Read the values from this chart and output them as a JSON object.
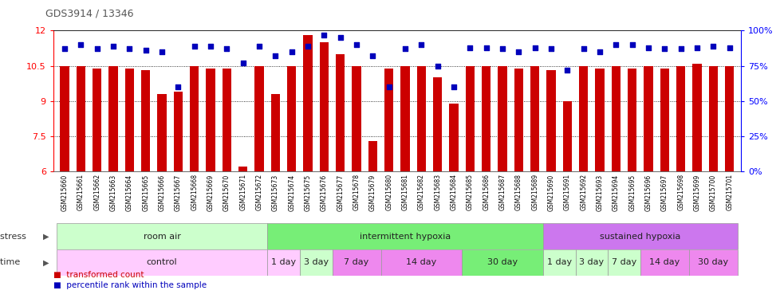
{
  "title": "GDS3914 / 13346",
  "samples": [
    "GSM215660",
    "GSM215661",
    "GSM215662",
    "GSM215663",
    "GSM215664",
    "GSM215665",
    "GSM215666",
    "GSM215667",
    "GSM215668",
    "GSM215669",
    "GSM215670",
    "GSM215671",
    "GSM215672",
    "GSM215673",
    "GSM215674",
    "GSM215675",
    "GSM215676",
    "GSM215677",
    "GSM215678",
    "GSM215679",
    "GSM215680",
    "GSM215681",
    "GSM215682",
    "GSM215683",
    "GSM215684",
    "GSM215685",
    "GSM215686",
    "GSM215687",
    "GSM215688",
    "GSM215689",
    "GSM215690",
    "GSM215691",
    "GSM215692",
    "GSM215693",
    "GSM215694",
    "GSM215695",
    "GSM215696",
    "GSM215697",
    "GSM215698",
    "GSM215699",
    "GSM215700",
    "GSM215701"
  ],
  "bar_values": [
    10.5,
    10.5,
    10.4,
    10.5,
    10.4,
    10.3,
    9.3,
    9.4,
    10.5,
    10.4,
    10.4,
    6.2,
    10.5,
    9.3,
    10.5,
    11.8,
    11.5,
    11.0,
    10.5,
    7.3,
    10.4,
    10.5,
    10.5,
    10.0,
    8.9,
    10.5,
    10.5,
    10.5,
    10.4,
    10.5,
    10.3,
    9.0,
    10.5,
    10.4,
    10.5,
    10.4,
    10.5,
    10.4,
    10.5,
    10.6,
    10.5,
    10.5
  ],
  "dot_values": [
    87,
    90,
    87,
    89,
    87,
    86,
    85,
    60,
    89,
    89,
    87,
    77,
    89,
    82,
    85,
    89,
    97,
    95,
    90,
    82,
    60,
    87,
    90,
    75,
    60,
    88,
    88,
    87,
    85,
    88,
    87,
    72,
    87,
    85,
    90,
    90,
    88,
    87,
    87,
    88,
    89,
    88
  ],
  "ylim_left": [
    6,
    12
  ],
  "ylim_right": [
    0,
    100
  ],
  "yticks_left": [
    6,
    7.5,
    9,
    10.5,
    12
  ],
  "yticks_right": [
    0,
    25,
    50,
    75,
    100
  ],
  "ytick_labels_right": [
    "0%",
    "25%",
    "50%",
    "75%",
    "100%"
  ],
  "bar_color": "#cc0000",
  "dot_color": "#0000bb",
  "grid_dotted_values": [
    7.5,
    9.0,
    10.5
  ],
  "stress_groups": [
    {
      "label": "room air",
      "start": 0,
      "end": 13,
      "color": "#ccffcc"
    },
    {
      "label": "intermittent hypoxia",
      "start": 13,
      "end": 30,
      "color": "#77ee77"
    },
    {
      "label": "sustained hypoxia",
      "start": 30,
      "end": 42,
      "color": "#cc77ee"
    }
  ],
  "time_groups": [
    {
      "label": "control",
      "start": 0,
      "end": 13,
      "color": "#ffccff"
    },
    {
      "label": "1 day",
      "start": 13,
      "end": 15,
      "color": "#ffccff"
    },
    {
      "label": "3 day",
      "start": 15,
      "end": 17,
      "color": "#ccffcc"
    },
    {
      "label": "7 day",
      "start": 17,
      "end": 20,
      "color": "#ee88ee"
    },
    {
      "label": "14 day",
      "start": 20,
      "end": 25,
      "color": "#ee88ee"
    },
    {
      "label": "30 day",
      "start": 25,
      "end": 30,
      "color": "#77ee77"
    },
    {
      "label": "1 day",
      "start": 30,
      "end": 32,
      "color": "#ccffcc"
    },
    {
      "label": "3 day",
      "start": 32,
      "end": 34,
      "color": "#ccffcc"
    },
    {
      "label": "7 day",
      "start": 34,
      "end": 36,
      "color": "#ccffcc"
    },
    {
      "label": "14 day",
      "start": 36,
      "end": 39,
      "color": "#ee88ee"
    },
    {
      "label": "30 day",
      "start": 39,
      "end": 42,
      "color": "#ee88ee"
    }
  ]
}
